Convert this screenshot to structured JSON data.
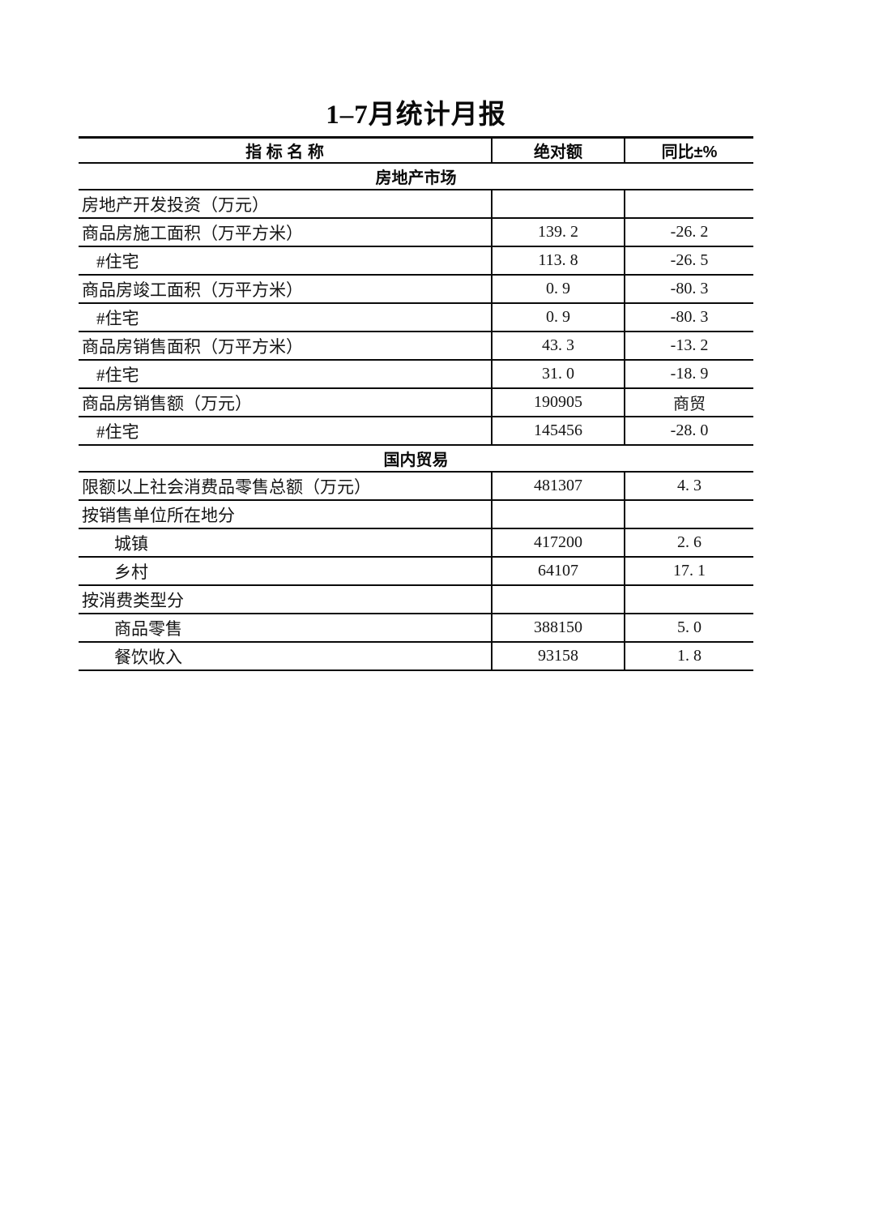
{
  "page": {
    "title": "1–7月统计月报"
  },
  "table": {
    "header": {
      "indicator": "指 标 名 称",
      "absolute": "绝对额",
      "yoy": "同比±%"
    },
    "rows": [
      {
        "type": "section",
        "name": "房地产市场"
      },
      {
        "type": "data",
        "indent": 0,
        "name": "房地产开发投资（万元）",
        "abs": "",
        "yoy": ""
      },
      {
        "type": "data",
        "indent": 0,
        "name": "商品房施工面积（万平方米）",
        "abs": "139. 2",
        "yoy": "-26. 2"
      },
      {
        "type": "data",
        "indent": 1,
        "name": "#住宅",
        "abs": "113. 8",
        "yoy": "-26. 5"
      },
      {
        "type": "data",
        "indent": 0,
        "name": "商品房竣工面积（万平方米）",
        "abs": "0. 9",
        "yoy": "-80. 3"
      },
      {
        "type": "data",
        "indent": 1,
        "name": "#住宅",
        "abs": "0. 9",
        "yoy": "-80. 3"
      },
      {
        "type": "data",
        "indent": 0,
        "name": "商品房销售面积（万平方米）",
        "abs": "43. 3",
        "yoy": "-13. 2"
      },
      {
        "type": "data",
        "indent": 1,
        "name": "#住宅",
        "abs": "31. 0",
        "yoy": "-18. 9"
      },
      {
        "type": "data",
        "indent": 0,
        "name": "商品房销售额（万元）",
        "abs": "190905",
        "yoy": "商贸"
      },
      {
        "type": "data",
        "indent": 1,
        "name": "#住宅",
        "abs": "145456",
        "yoy": "-28. 0"
      },
      {
        "type": "section",
        "name": "国内贸易"
      },
      {
        "type": "data",
        "indent": 0,
        "name": "限额以上社会消费品零售总额（万元）",
        "abs": "481307",
        "yoy": "4. 3"
      },
      {
        "type": "data",
        "indent": 0,
        "name": "按销售单位所在地分",
        "abs": "",
        "yoy": ""
      },
      {
        "type": "data",
        "indent": 2,
        "name": "城镇",
        "abs": "417200",
        "yoy": "2. 6"
      },
      {
        "type": "data",
        "indent": 2,
        "name": "乡村",
        "abs": "64107",
        "yoy": "17. 1"
      },
      {
        "type": "data",
        "indent": 0,
        "name": "按消费类型分",
        "abs": "",
        "yoy": ""
      },
      {
        "type": "data",
        "indent": 2,
        "name": "商品零售",
        "abs": "388150",
        "yoy": "5. 0"
      },
      {
        "type": "data",
        "indent": 2,
        "name": "餐饮收入",
        "abs": "93158",
        "yoy": "1. 8"
      }
    ]
  }
}
